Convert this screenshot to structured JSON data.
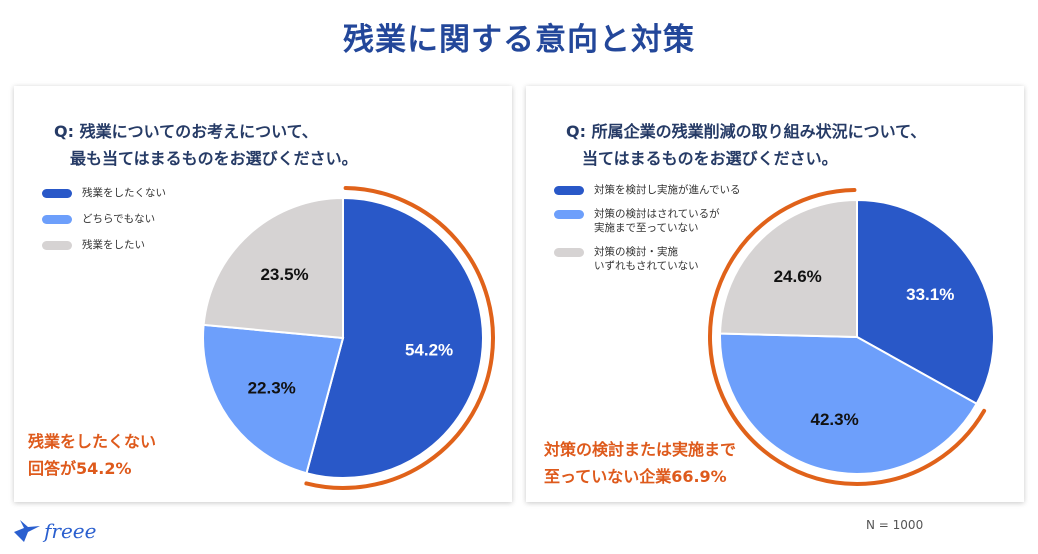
{
  "page": {
    "title": "残業に関する意向と対策"
  },
  "charts": [
    {
      "question_line1": "Q: 残業についてのお考えについて、",
      "question_line2": "最も当てはまるものをお選びください。",
      "callout_line1": "残業をしたくない",
      "callout_line2": "回答が54.2%"
    },
    {
      "question_line1": "Q: 所属企業の残業削減の取り組み状況について、",
      "question_line2": "当てはまるものをお選びください。",
      "callout_line1": "対策の検討または実施まで",
      "callout_line2": "至っていない企業66.9%"
    }
  ],
  "chart_data": [
    {
      "type": "pie",
      "categories": [
        "残業をしたくない",
        "どちらでもない",
        "残業をしたい"
      ],
      "values": [
        54.2,
        22.3,
        23.5
      ],
      "labels": [
        "54.2%",
        "22.3%",
        "23.5%"
      ],
      "colors": [
        "#2958c8",
        "#6d9ffb",
        "#d6d3d3"
      ],
      "highlight": [
        "残業をしたくない"
      ],
      "legend": "top-left"
    },
    {
      "type": "pie",
      "categories": [
        "対策を検討し実施が進んでいる",
        "対策の検討はされているが\n実施まで至っていない",
        "対策の検討・実施\nいずれもされていない"
      ],
      "values": [
        33.1,
        42.3,
        24.6
      ],
      "labels": [
        "33.1%",
        "42.3%",
        "24.6%"
      ],
      "colors": [
        "#2958c8",
        "#6d9ffb",
        "#d6d3d3"
      ],
      "highlight": [
        "対策の検討はされているが\n実施まで至っていない",
        "対策の検討・実施\nいずれもされていない"
      ],
      "legend": "top-left"
    }
  ],
  "brand": {
    "logo_text": "freee",
    "highlight_color": "#e0621a"
  },
  "footer": {
    "sample_size": "N = 1000"
  }
}
